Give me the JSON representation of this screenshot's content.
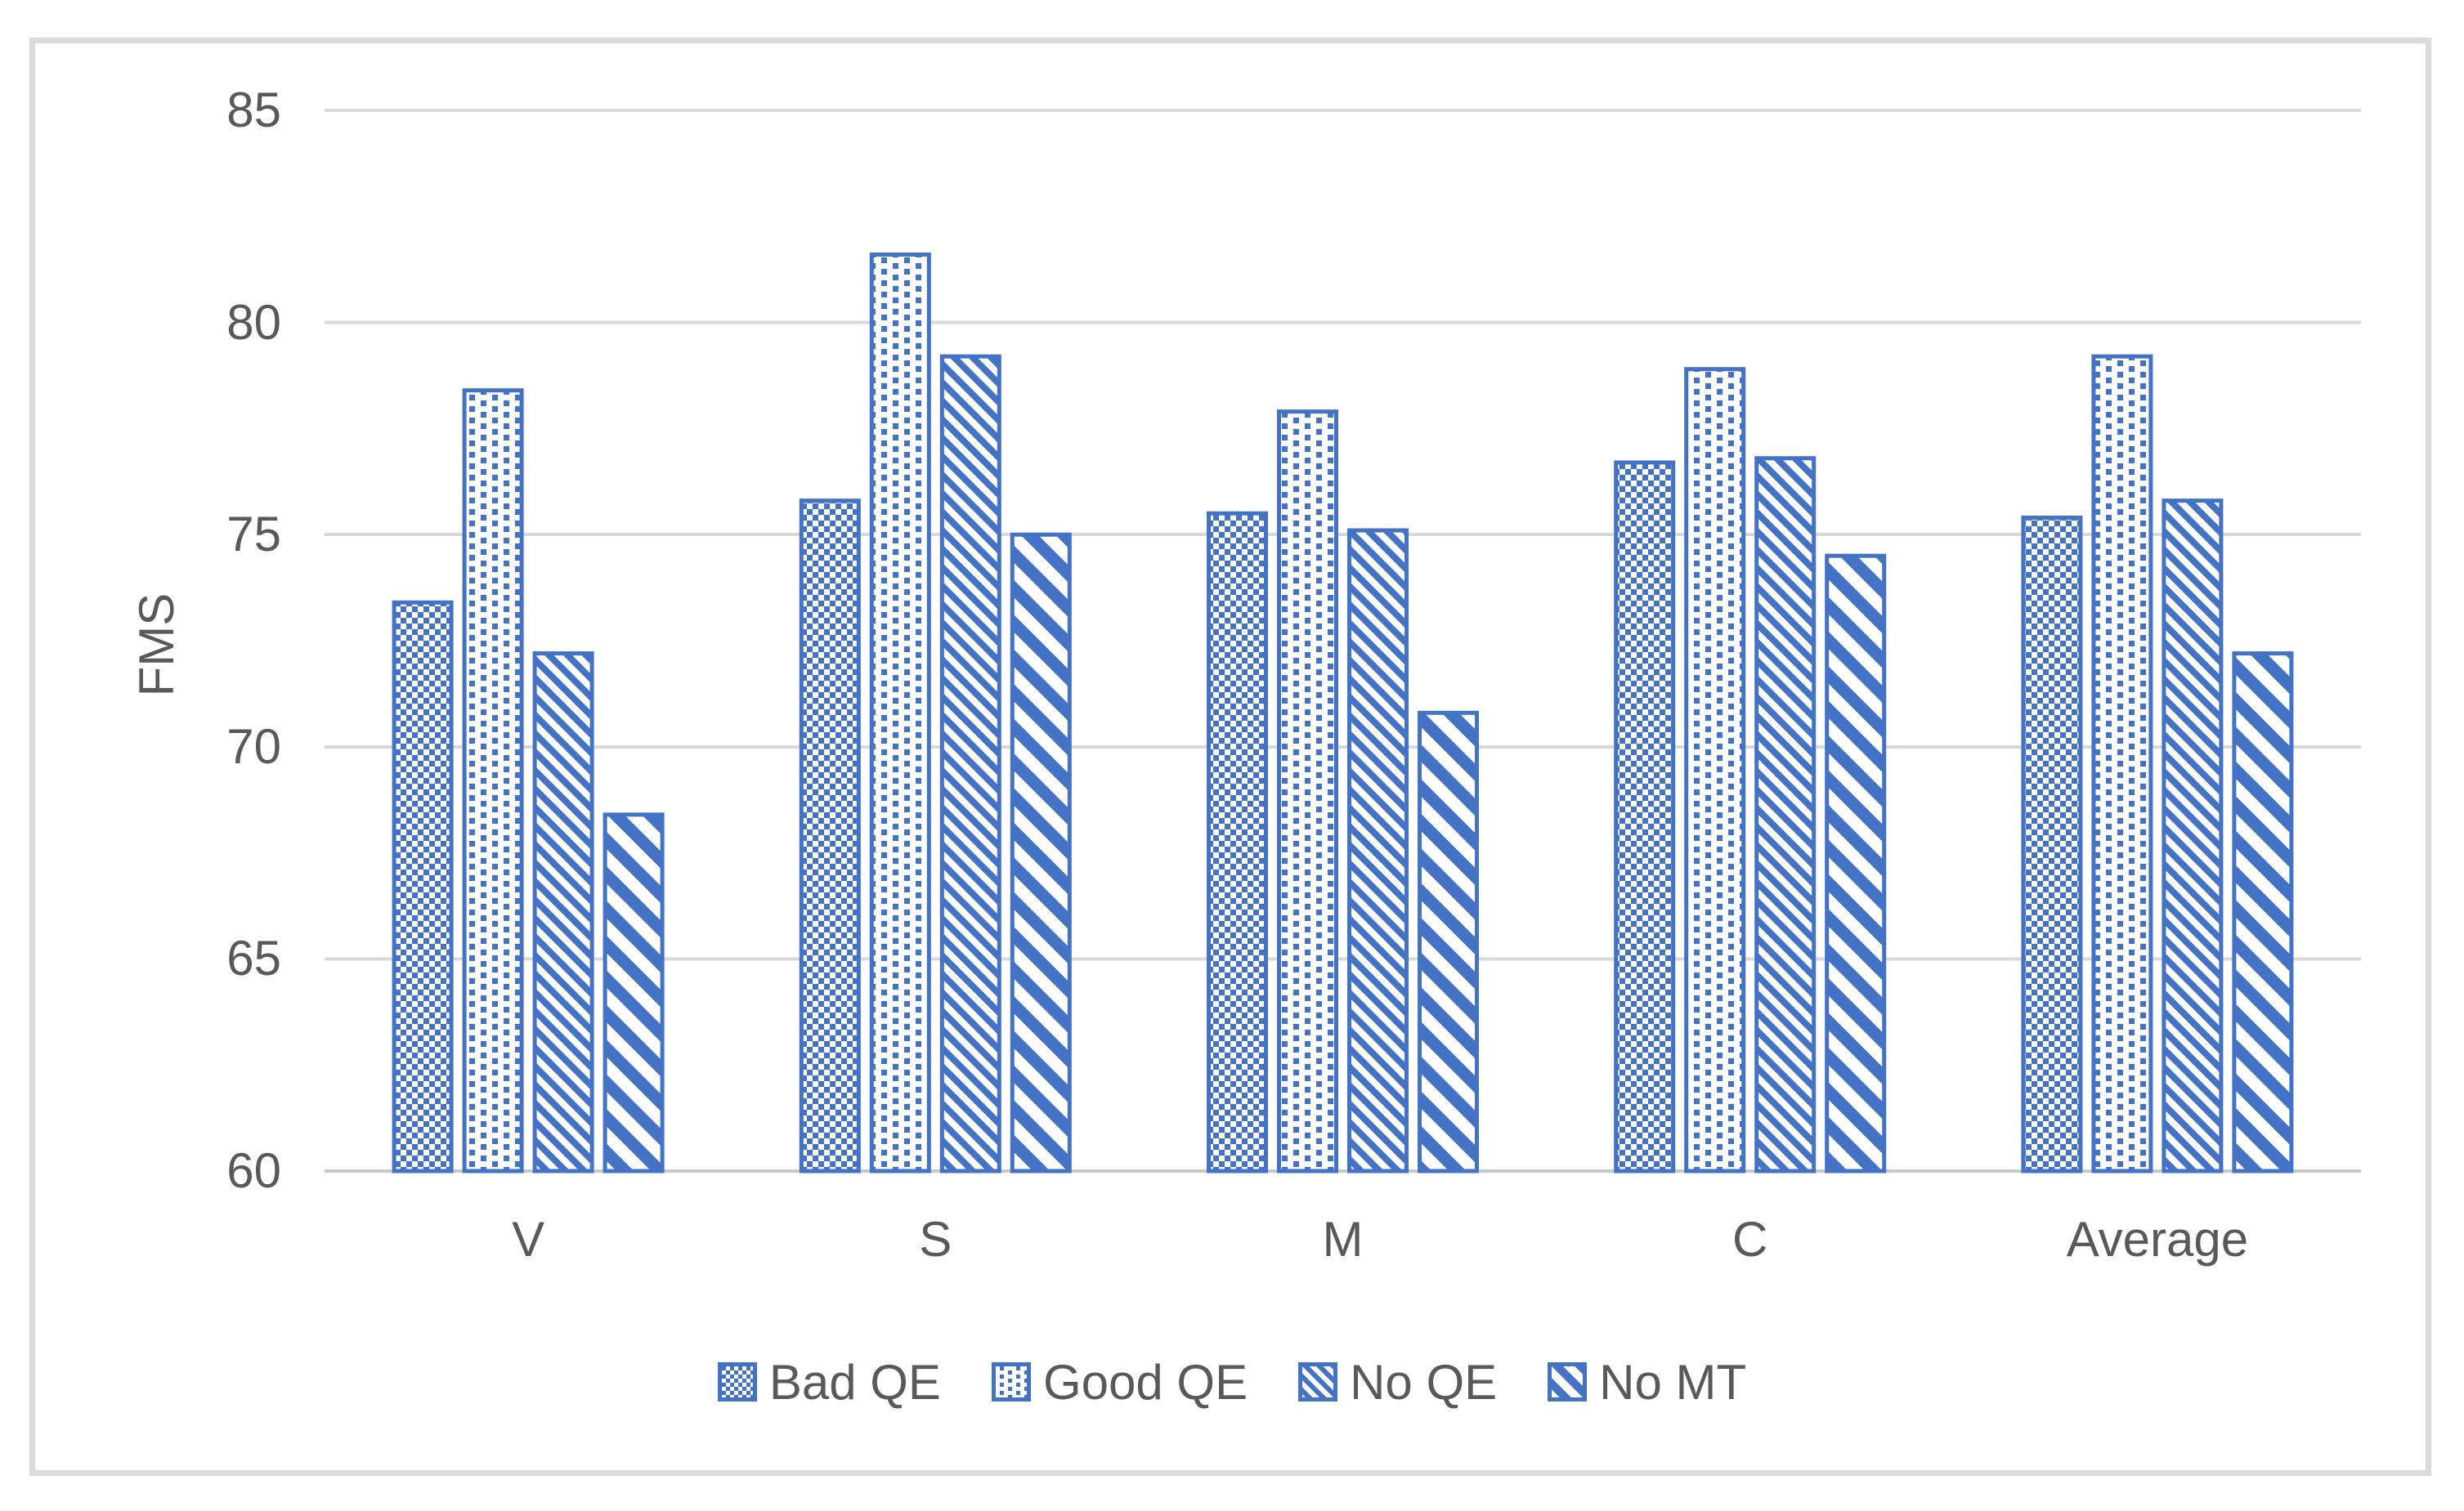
{
  "chart_data": {
    "type": "bar",
    "title": "",
    "xlabel": "",
    "ylabel": "FMS",
    "categories": [
      "V",
      "S",
      "M",
      "C",
      "Average"
    ],
    "series": [
      {
        "name": "Bad QE",
        "pattern": "checker",
        "values": [
          73.4,
          75.8,
          75.5,
          76.7,
          75.4
        ]
      },
      {
        "name": "Good QE",
        "pattern": "dots",
        "values": [
          78.4,
          81.6,
          77.9,
          78.9,
          79.2
        ]
      },
      {
        "name": "No QE",
        "pattern": "diag-thin",
        "values": [
          72.2,
          79.2,
          75.1,
          76.8,
          75.8
        ]
      },
      {
        "name": "No MT",
        "pattern": "diag-wide",
        "values": [
          68.4,
          75.0,
          70.8,
          74.5,
          72.2
        ]
      }
    ],
    "y_axis": {
      "min": 60,
      "max": 85,
      "step": 5,
      "ticks": [
        85,
        80,
        75,
        70,
        65,
        60
      ]
    },
    "ylim": [
      60,
      85
    ],
    "grid": true,
    "legend_position": "bottom",
    "colors": {
      "bar_blue": "#4472C4",
      "gridline": "#D9D9D9",
      "axis_line": "#C8C8C8",
      "text": "#595959",
      "frame_border": "#DBDBDB",
      "background": "#FFFFFF"
    }
  }
}
